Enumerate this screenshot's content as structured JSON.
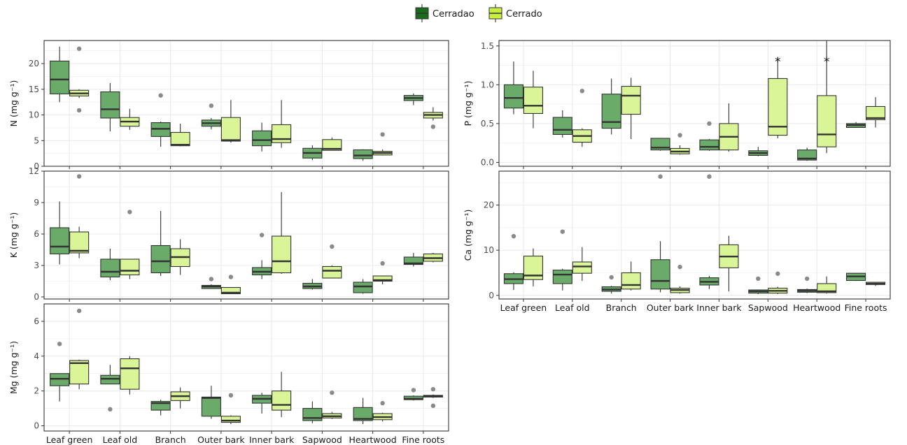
{
  "legend": [
    {
      "label": "Cerradao",
      "fill": "#1a6b1a"
    },
    {
      "label": "Cerrado",
      "fill": "#c6ef3f"
    }
  ],
  "colors": {
    "cerradao_box": "#6aab6a",
    "cerrado_box": "#d9f597",
    "outlier": "#8a8a8a",
    "grid": "#ebebeb",
    "panel_border": "#333333"
  },
  "chart_data": [
    {
      "type": "box",
      "ylabel": "N (mg g⁻¹)",
      "ylim": [
        0,
        24.5
      ],
      "yticks": [
        0,
        5,
        10,
        15,
        20
      ],
      "categories": [
        "Leaf green",
        "Leaf old",
        "Branch",
        "Outer bark",
        "Inner bark",
        "Sapwood",
        "Heartwood",
        "Fine roots"
      ],
      "show_xlabels": false,
      "series": [
        {
          "name": "Cerradao",
          "boxes": [
            {
              "min": 12.5,
              "q1": 14.1,
              "median": 16.9,
              "q3": 20.5,
              "max": 23.3,
              "outliers": []
            },
            {
              "min": 6.8,
              "q1": 9.4,
              "median": 11.1,
              "q3": 14.5,
              "max": 16.2,
              "outliers": []
            },
            {
              "min": 3.8,
              "q1": 5.8,
              "median": 7.3,
              "q3": 8.5,
              "max": 8.7,
              "outliers": [
                13.8
              ]
            },
            {
              "min": 7.2,
              "q1": 7.8,
              "median": 8.4,
              "q3": 9.0,
              "max": 9.4,
              "outliers": [
                11.8
              ]
            },
            {
              "min": 2.9,
              "q1": 4.0,
              "median": 5.1,
              "q3": 6.9,
              "max": 8.5,
              "outliers": []
            },
            {
              "min": 1.2,
              "q1": 1.6,
              "median": 2.6,
              "q3": 3.5,
              "max": 4.1,
              "outliers": []
            },
            {
              "min": 1.1,
              "q1": 1.5,
              "median": 2.1,
              "q3": 3.2,
              "max": 3.3,
              "outliers": []
            },
            {
              "min": 11.9,
              "q1": 12.8,
              "median": 13.3,
              "q3": 13.8,
              "max": 14.2,
              "outliers": []
            }
          ]
        },
        {
          "name": "Cerrado",
          "boxes": [
            {
              "min": 13.3,
              "q1": 13.7,
              "median": 14.2,
              "q3": 14.8,
              "max": 15.0,
              "outliers": [
                22.9,
                10.9
              ]
            },
            {
              "min": 7.1,
              "q1": 7.8,
              "median": 8.7,
              "q3": 9.5,
              "max": 11.2,
              "outliers": []
            },
            {
              "min": 3.9,
              "q1": 4.0,
              "median": 4.2,
              "q3": 6.6,
              "max": 8.3,
              "outliers": []
            },
            {
              "min": 4.6,
              "q1": 4.9,
              "median": 5.1,
              "q3": 9.5,
              "max": 12.9,
              "outliers": []
            },
            {
              "min": 3.6,
              "q1": 4.6,
              "median": 5.3,
              "q3": 8.1,
              "max": 12.9,
              "outliers": []
            },
            {
              "min": 3.1,
              "q1": 3.1,
              "median": 3.4,
              "q3": 5.2,
              "max": 5.6,
              "outliers": []
            },
            {
              "min": 2.1,
              "q1": 2.2,
              "median": 2.6,
              "q3": 2.9,
              "max": 3.3,
              "outliers": [
                6.2
              ]
            },
            {
              "min": 8.9,
              "q1": 9.4,
              "median": 10.0,
              "q3": 10.5,
              "max": 11.5,
              "outliers": [
                7.7
              ]
            }
          ]
        }
      ]
    },
    {
      "type": "box",
      "ylabel": "K (mg g⁻¹)",
      "ylim": [
        -0.2,
        12
      ],
      "yticks": [
        0,
        3,
        6,
        9,
        12
      ],
      "categories": [
        "Leaf green",
        "Leaf old",
        "Branch",
        "Outer bark",
        "Inner bark",
        "Sapwood",
        "Heartwood",
        "Fine roots"
      ],
      "show_xlabels": false,
      "series": [
        {
          "name": "Cerradao",
          "boxes": [
            {
              "min": 3.1,
              "q1": 4.1,
              "median": 4.8,
              "q3": 6.6,
              "max": 9.1,
              "outliers": []
            },
            {
              "min": 1.6,
              "q1": 1.9,
              "median": 2.4,
              "q3": 3.6,
              "max": 4.6,
              "outliers": []
            },
            {
              "min": 2.0,
              "q1": 2.3,
              "median": 3.4,
              "q3": 4.9,
              "max": 8.2,
              "outliers": []
            },
            {
              "min": 0.8,
              "q1": 0.8,
              "median": 1.0,
              "q3": 1.1,
              "max": 1.2,
              "outliers": [
                1.7
              ]
            },
            {
              "min": 1.7,
              "q1": 2.1,
              "median": 2.4,
              "q3": 2.8,
              "max": 3.5,
              "outliers": [
                5.9
              ]
            },
            {
              "min": 0.7,
              "q1": 0.8,
              "median": 1.0,
              "q3": 1.3,
              "max": 1.7,
              "outliers": []
            },
            {
              "min": 0.3,
              "q1": 0.4,
              "median": 1.0,
              "q3": 1.4,
              "max": 1.7,
              "outliers": []
            },
            {
              "min": 2.9,
              "q1": 3.1,
              "median": 3.2,
              "q3": 3.8,
              "max": 4.2,
              "outliers": []
            }
          ]
        },
        {
          "name": "Cerrado",
          "boxes": [
            {
              "min": 3.7,
              "q1": 4.2,
              "median": 4.4,
              "q3": 6.2,
              "max": 6.7,
              "outliers": [
                11.5
              ]
            },
            {
              "min": 1.7,
              "q1": 2.1,
              "median": 2.5,
              "q3": 3.6,
              "max": 3.6,
              "outliers": [
                8.1
              ]
            },
            {
              "min": 2.1,
              "q1": 2.9,
              "median": 3.8,
              "q3": 4.6,
              "max": 5.5,
              "outliers": []
            },
            {
              "min": 0.3,
              "q1": 0.3,
              "median": 0.4,
              "q3": 0.9,
              "max": 0.9,
              "outliers": [
                1.9
              ]
            },
            {
              "min": 2.2,
              "q1": 2.3,
              "median": 3.4,
              "q3": 5.8,
              "max": 10.0,
              "outliers": []
            },
            {
              "min": 1.8,
              "q1": 1.8,
              "median": 2.5,
              "q3": 2.9,
              "max": 3.0,
              "outliers": [
                4.8
              ]
            },
            {
              "min": 1.2,
              "q1": 1.5,
              "median": 1.6,
              "q3": 2.0,
              "max": 2.0,
              "outliers": [
                3.2
              ]
            },
            {
              "min": 3.3,
              "q1": 3.4,
              "median": 3.7,
              "q3": 4.1,
              "max": 4.2,
              "outliers": []
            }
          ]
        }
      ]
    },
    {
      "type": "box",
      "ylabel": "Mg (mg g⁻¹)",
      "ylim": [
        -0.3,
        7.0
      ],
      "yticks": [
        0,
        2,
        4,
        6
      ],
      "categories": [
        "Leaf green",
        "Leaf old",
        "Branch",
        "Outer bark",
        "Inner bark",
        "Sapwood",
        "Heartwood",
        "Fine roots"
      ],
      "show_xlabels": true,
      "series": [
        {
          "name": "Cerradao",
          "boxes": [
            {
              "min": 1.4,
              "q1": 2.3,
              "median": 2.7,
              "q3": 3.0,
              "max": 3.0,
              "outliers": [
                4.7
              ]
            },
            {
              "min": 2.4,
              "q1": 2.4,
              "median": 2.7,
              "q3": 2.9,
              "max": 3.5,
              "outliers": [
                0.95
              ]
            },
            {
              "min": 0.6,
              "q1": 0.9,
              "median": 1.3,
              "q3": 1.4,
              "max": 1.5,
              "outliers": []
            },
            {
              "min": 0.4,
              "q1": 0.55,
              "median": 1.6,
              "q3": 1.65,
              "max": 2.3,
              "outliers": []
            },
            {
              "min": 0.7,
              "q1": 1.3,
              "median": 1.55,
              "q3": 1.75,
              "max": 1.9,
              "outliers": []
            },
            {
              "min": 0.15,
              "q1": 0.3,
              "median": 0.45,
              "q3": 1.0,
              "max": 1.4,
              "outliers": []
            },
            {
              "min": 0.1,
              "q1": 0.3,
              "median": 0.4,
              "q3": 1.05,
              "max": 1.6,
              "outliers": []
            },
            {
              "min": 1.45,
              "q1": 1.5,
              "median": 1.55,
              "q3": 1.7,
              "max": 1.75,
              "outliers": [
                2.05
              ]
            }
          ]
        },
        {
          "name": "Cerrado",
          "boxes": [
            {
              "min": 2.1,
              "q1": 2.4,
              "median": 3.6,
              "q3": 3.75,
              "max": 3.8,
              "outliers": [
                6.6
              ]
            },
            {
              "min": 1.8,
              "q1": 2.1,
              "median": 3.3,
              "q3": 3.85,
              "max": 4.0,
              "outliers": []
            },
            {
              "min": 1.0,
              "q1": 1.45,
              "median": 1.7,
              "q3": 1.95,
              "max": 2.2,
              "outliers": []
            },
            {
              "min": 0.1,
              "q1": 0.2,
              "median": 0.3,
              "q3": 0.55,
              "max": 0.6,
              "outliers": [
                1.75
              ]
            },
            {
              "min": 0.5,
              "q1": 0.9,
              "median": 1.2,
              "q3": 2.0,
              "max": 3.1,
              "outliers": []
            },
            {
              "min": 0.4,
              "q1": 0.45,
              "median": 0.55,
              "q3": 0.7,
              "max": 0.8,
              "outliers": [
                1.9
              ]
            },
            {
              "min": 0.25,
              "q1": 0.35,
              "median": 0.5,
              "q3": 0.7,
              "max": 0.75,
              "outliers": [
                1.3
              ]
            },
            {
              "min": 1.6,
              "q1": 1.65,
              "median": 1.7,
              "q3": 1.75,
              "max": 1.8,
              "outliers": [
                2.1,
                1.15
              ]
            }
          ]
        }
      ]
    },
    {
      "type": "box",
      "ylabel": "P (mg g⁻¹)",
      "ylim": [
        -0.05,
        1.57
      ],
      "yticks": [
        0.0,
        0.5,
        1.0,
        1.5
      ],
      "categories": [
        "Leaf green",
        "Leaf old",
        "Branch",
        "Outer bark",
        "Inner bark",
        "Sapwood",
        "Heartwood",
        "Fine roots"
      ],
      "show_xlabels": false,
      "annotations": [
        {
          "category": "Sapwood",
          "text": "*"
        },
        {
          "category": "Heartwood",
          "text": "*"
        }
      ],
      "series": [
        {
          "name": "Cerradao",
          "boxes": [
            {
              "min": 0.62,
              "q1": 0.7,
              "median": 0.83,
              "q3": 1.0,
              "max": 1.3,
              "outliers": []
            },
            {
              "min": 0.32,
              "q1": 0.36,
              "median": 0.42,
              "q3": 0.58,
              "max": 0.67,
              "outliers": []
            },
            {
              "min": 0.36,
              "q1": 0.44,
              "median": 0.52,
              "q3": 0.88,
              "max": 1.08,
              "outliers": []
            },
            {
              "min": 0.15,
              "q1": 0.16,
              "median": 0.19,
              "q3": 0.31,
              "max": 0.31,
              "outliers": []
            },
            {
              "min": 0.15,
              "q1": 0.16,
              "median": 0.2,
              "q3": 0.29,
              "max": 0.3,
              "outliers": [
                0.5
              ]
            },
            {
              "min": 0.08,
              "q1": 0.09,
              "median": 0.12,
              "q3": 0.15,
              "max": 0.2,
              "outliers": []
            },
            {
              "min": 0.02,
              "q1": 0.03,
              "median": 0.05,
              "q3": 0.16,
              "max": 0.19,
              "outliers": []
            },
            {
              "min": 0.45,
              "q1": 0.45,
              "median": 0.48,
              "q3": 0.5,
              "max": 0.52,
              "outliers": []
            }
          ]
        },
        {
          "name": "Cerrado",
          "boxes": [
            {
              "min": 0.44,
              "q1": 0.63,
              "median": 0.73,
              "q3": 0.97,
              "max": 1.18,
              "outliers": []
            },
            {
              "min": 0.2,
              "q1": 0.26,
              "median": 0.34,
              "q3": 0.42,
              "max": 0.44,
              "outliers": [
                0.92
              ]
            },
            {
              "min": 0.3,
              "q1": 0.62,
              "median": 0.86,
              "q3": 0.98,
              "max": 1.09,
              "outliers": []
            },
            {
              "min": 0.1,
              "q1": 0.11,
              "median": 0.14,
              "q3": 0.18,
              "max": 0.22,
              "outliers": [
                0.35
              ]
            },
            {
              "min": 0.14,
              "q1": 0.16,
              "median": 0.33,
              "q3": 0.5,
              "max": 0.76,
              "outliers": []
            },
            {
              "min": 0.31,
              "q1": 0.35,
              "median": 0.46,
              "q3": 1.08,
              "max": 1.35,
              "outliers": []
            },
            {
              "min": 0.12,
              "q1": 0.2,
              "median": 0.36,
              "q3": 0.86,
              "max": 1.57,
              "outliers": []
            },
            {
              "min": 0.45,
              "q1": 0.55,
              "median": 0.57,
              "q3": 0.72,
              "max": 0.84,
              "outliers": []
            }
          ]
        }
      ]
    },
    {
      "type": "box",
      "ylabel": "Ca (mg g⁻¹)",
      "ylim": [
        -0.8,
        27.5
      ],
      "yticks": [
        0,
        10,
        20
      ],
      "categories": [
        "Leaf green",
        "Leaf old",
        "Branch",
        "Outer bark",
        "Inner bark",
        "Sapwood",
        "Heartwood",
        "Fine roots"
      ],
      "show_xlabels": true,
      "series": [
        {
          "name": "Cerradao",
          "boxes": [
            {
              "min": 1.2,
              "q1": 2.6,
              "median": 3.6,
              "q3": 4.8,
              "max": 5.1,
              "outliers": [
                13.1
              ]
            },
            {
              "min": 1.1,
              "q1": 2.6,
              "median": 4.6,
              "q3": 5.6,
              "max": 5.9,
              "outliers": [
                14.1
              ]
            },
            {
              "min": 0.4,
              "q1": 0.9,
              "median": 1.3,
              "q3": 1.9,
              "max": 2.1,
              "outliers": [
                4.0
              ]
            },
            {
              "min": 0.7,
              "q1": 1.4,
              "median": 3.2,
              "q3": 7.9,
              "max": 12.0,
              "outliers": [
                26.3
              ]
            },
            {
              "min": 1.4,
              "q1": 2.3,
              "median": 3.0,
              "q3": 3.9,
              "max": 4.3,
              "outliers": [
                26.3
              ]
            },
            {
              "min": 0.3,
              "q1": 0.5,
              "median": 0.9,
              "q3": 1.2,
              "max": 1.3,
              "outliers": [
                3.7
              ]
            },
            {
              "min": 0.5,
              "q1": 0.7,
              "median": 1.0,
              "q3": 1.3,
              "max": 1.5,
              "outliers": [
                3.7
              ]
            },
            {
              "min": 3.2,
              "q1": 3.3,
              "median": 4.2,
              "q3": 4.9,
              "max": 4.9,
              "outliers": []
            }
          ]
        },
        {
          "name": "Cerrado",
          "boxes": [
            {
              "min": 2.0,
              "q1": 3.5,
              "median": 4.4,
              "q3": 8.7,
              "max": 10.4,
              "outliers": []
            },
            {
              "min": 3.2,
              "q1": 4.9,
              "median": 6.4,
              "q3": 7.4,
              "max": 10.7,
              "outliers": []
            },
            {
              "min": 1.1,
              "q1": 1.4,
              "median": 2.3,
              "q3": 5.0,
              "max": 7.5,
              "outliers": []
            },
            {
              "min": 0.4,
              "q1": 0.6,
              "median": 1.2,
              "q3": 1.6,
              "max": 2.0,
              "outliers": [
                6.3
              ]
            },
            {
              "min": 0.9,
              "q1": 6.1,
              "median": 8.6,
              "q3": 11.2,
              "max": 13.2,
              "outliers": []
            },
            {
              "min": 0.3,
              "q1": 0.5,
              "median": 1.0,
              "q3": 1.6,
              "max": 1.9,
              "outliers": [
                4.8
              ]
            },
            {
              "min": 0.4,
              "q1": 0.6,
              "median": 0.9,
              "q3": 2.6,
              "max": 4.2,
              "outliers": []
            },
            {
              "min": 2.1,
              "q1": 2.4,
              "median": 2.6,
              "q3": 2.9,
              "max": 2.9,
              "outliers": []
            }
          ]
        }
      ]
    }
  ]
}
